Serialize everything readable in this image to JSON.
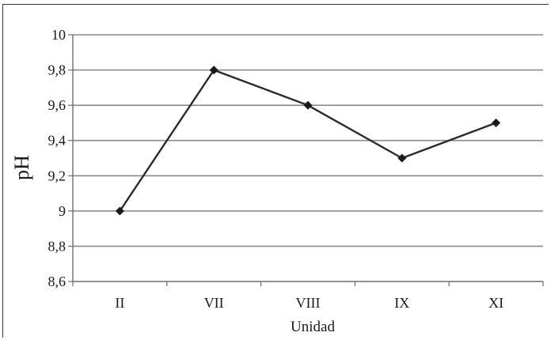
{
  "chart_data": {
    "type": "line",
    "title": "",
    "xlabel": "Unidad",
    "ylabel": "pH",
    "categories": [
      "II",
      "VII",
      "VIII",
      "IX",
      "XI"
    ],
    "series": [
      {
        "values": [
          9.0,
          9.8,
          9.6,
          9.3,
          9.5
        ]
      }
    ],
    "ylim": [
      8.6,
      10
    ],
    "yticks": [
      "8,6",
      "8,8",
      "9",
      "9,2",
      "9,4",
      "9,6",
      "9,8",
      "10"
    ],
    "grid": true,
    "legend": false,
    "marker": "diamond",
    "line_color": "#2b2b2b",
    "grid_color": "#8a8a8a",
    "axis_color": "#6e6e6e"
  }
}
